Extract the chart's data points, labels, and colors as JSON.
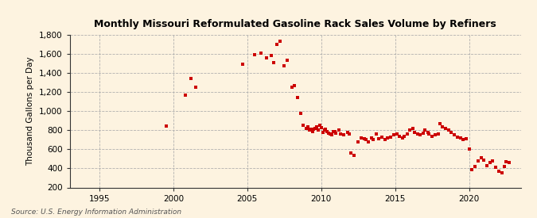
{
  "title": "Monthly Missouri Reformulated Gasoline Rack Sales Volume by Refiners",
  "ylabel": "Thousand Gallons per Day",
  "source": "Source: U.S. Energy Information Administration",
  "background_color": "#fdf3e0",
  "plot_bg_color": "#fdf3e0",
  "marker_color": "#cc0000",
  "marker_size": 3.5,
  "ylim": [
    200,
    1800
  ],
  "yticks": [
    200,
    400,
    600,
    800,
    1000,
    1200,
    1400,
    1600,
    1800
  ],
  "xlim": [
    1993.0,
    2023.5
  ],
  "xticks": [
    1995,
    2000,
    2005,
    2010,
    2015,
    2020
  ],
  "data": [
    [
      1999.5,
      845
    ],
    [
      2000.8,
      1165
    ],
    [
      2001.2,
      1340
    ],
    [
      2001.5,
      1255
    ],
    [
      2004.7,
      1490
    ],
    [
      2005.5,
      1590
    ],
    [
      2005.9,
      1605
    ],
    [
      2006.3,
      1560
    ],
    [
      2006.6,
      1580
    ],
    [
      2006.8,
      1510
    ],
    [
      2007.0,
      1700
    ],
    [
      2007.2,
      1735
    ],
    [
      2007.5,
      1480
    ],
    [
      2007.7,
      1530
    ],
    [
      2008.0,
      1255
    ],
    [
      2008.2,
      1265
    ],
    [
      2008.4,
      1145
    ],
    [
      2008.6,
      980
    ],
    [
      2008.8,
      850
    ],
    [
      2009.0,
      820
    ],
    [
      2009.1,
      840
    ],
    [
      2009.2,
      800
    ],
    [
      2009.3,
      810
    ],
    [
      2009.4,
      790
    ],
    [
      2009.5,
      810
    ],
    [
      2009.6,
      820
    ],
    [
      2009.7,
      840
    ],
    [
      2009.8,
      800
    ],
    [
      2009.9,
      850
    ],
    [
      2010.0,
      825
    ],
    [
      2010.1,
      780
    ],
    [
      2010.2,
      800
    ],
    [
      2010.3,
      815
    ],
    [
      2010.4,
      790
    ],
    [
      2010.5,
      770
    ],
    [
      2010.6,
      760
    ],
    [
      2010.7,
      750
    ],
    [
      2010.8,
      785
    ],
    [
      2010.9,
      790
    ],
    [
      2011.0,
      770
    ],
    [
      2011.2,
      800
    ],
    [
      2011.3,
      760
    ],
    [
      2011.5,
      755
    ],
    [
      2011.8,
      775
    ],
    [
      2011.9,
      760
    ],
    [
      2012.0,
      560
    ],
    [
      2012.2,
      540
    ],
    [
      2012.5,
      680
    ],
    [
      2012.7,
      720
    ],
    [
      2012.9,
      710
    ],
    [
      2013.0,
      700
    ],
    [
      2013.2,
      680
    ],
    [
      2013.4,
      720
    ],
    [
      2013.5,
      700
    ],
    [
      2013.7,
      760
    ],
    [
      2013.9,
      710
    ],
    [
      2014.1,
      730
    ],
    [
      2014.3,
      700
    ],
    [
      2014.5,
      720
    ],
    [
      2014.7,
      730
    ],
    [
      2014.9,
      750
    ],
    [
      2015.1,
      760
    ],
    [
      2015.3,
      740
    ],
    [
      2015.5,
      720
    ],
    [
      2015.6,
      735
    ],
    [
      2015.8,
      760
    ],
    [
      2016.0,
      800
    ],
    [
      2016.2,
      820
    ],
    [
      2016.3,
      780
    ],
    [
      2016.5,
      760
    ],
    [
      2016.7,
      750
    ],
    [
      2016.9,
      770
    ],
    [
      2017.0,
      800
    ],
    [
      2017.2,
      780
    ],
    [
      2017.3,
      760
    ],
    [
      2017.5,
      740
    ],
    [
      2017.7,
      750
    ],
    [
      2017.9,
      760
    ],
    [
      2018.0,
      870
    ],
    [
      2018.2,
      840
    ],
    [
      2018.4,
      820
    ],
    [
      2018.6,
      800
    ],
    [
      2018.8,
      780
    ],
    [
      2019.0,
      750
    ],
    [
      2019.2,
      730
    ],
    [
      2019.4,
      720
    ],
    [
      2019.6,
      700
    ],
    [
      2019.8,
      710
    ],
    [
      2020.0,
      600
    ],
    [
      2020.2,
      390
    ],
    [
      2020.4,
      420
    ],
    [
      2020.6,
      480
    ],
    [
      2020.8,
      510
    ],
    [
      2021.0,
      490
    ],
    [
      2021.2,
      430
    ],
    [
      2021.4,
      460
    ],
    [
      2021.6,
      480
    ],
    [
      2021.8,
      410
    ],
    [
      2022.0,
      370
    ],
    [
      2022.2,
      350
    ],
    [
      2022.4,
      420
    ],
    [
      2022.5,
      470
    ],
    [
      2022.7,
      460
    ]
  ]
}
